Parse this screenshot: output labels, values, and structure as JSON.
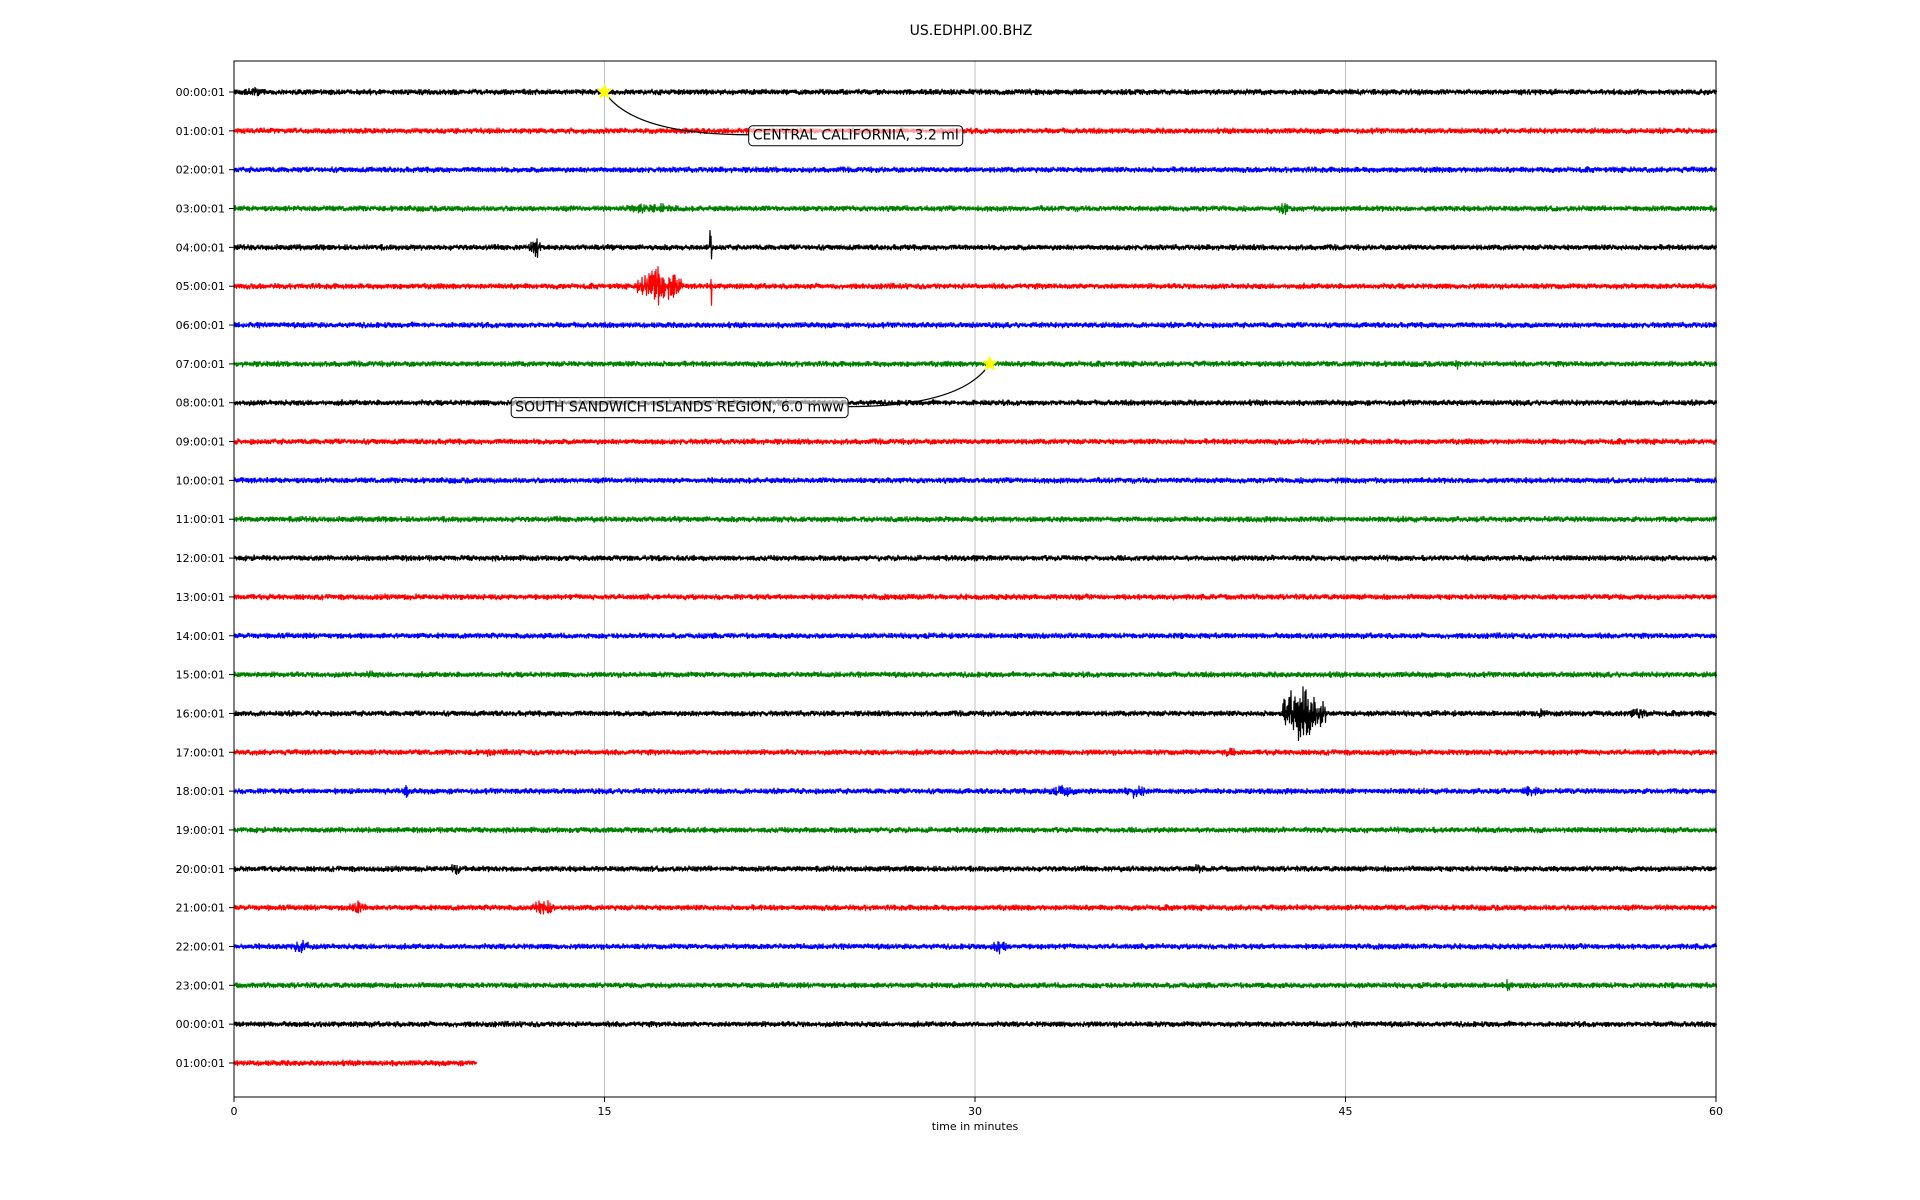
{
  "chart_data": {
    "type": "line",
    "title": "US.EDHPI.00.BHZ",
    "xlabel": "time in minutes",
    "ylabel": "",
    "xlim": [
      0,
      60
    ],
    "x_ticks": [
      "0",
      "15",
      "30",
      "45",
      "60"
    ],
    "x_tick_values": [
      0,
      15,
      30,
      45,
      60
    ],
    "grid": "vertical",
    "colors": [
      "#000000",
      "#ff0000",
      "#0000ff",
      "#008000"
    ],
    "rows": [
      {
        "label": "00:00:01",
        "end_minute": 60
      },
      {
        "label": "01:00:01",
        "end_minute": 60
      },
      {
        "label": "02:00:01",
        "end_minute": 60
      },
      {
        "label": "03:00:01",
        "end_minute": 60
      },
      {
        "label": "04:00:01",
        "end_minute": 60
      },
      {
        "label": "05:00:01",
        "end_minute": 60
      },
      {
        "label": "06:00:01",
        "end_minute": 60
      },
      {
        "label": "07:00:01",
        "end_minute": 60
      },
      {
        "label": "08:00:01",
        "end_minute": 60
      },
      {
        "label": "09:00:01",
        "end_minute": 60
      },
      {
        "label": "10:00:01",
        "end_minute": 60
      },
      {
        "label": "11:00:01",
        "end_minute": 60
      },
      {
        "label": "12:00:01",
        "end_minute": 60
      },
      {
        "label": "13:00:01",
        "end_minute": 60
      },
      {
        "label": "14:00:01",
        "end_minute": 60
      },
      {
        "label": "15:00:01",
        "end_minute": 60
      },
      {
        "label": "16:00:01",
        "end_minute": 60
      },
      {
        "label": "17:00:01",
        "end_minute": 60
      },
      {
        "label": "18:00:01",
        "end_minute": 60
      },
      {
        "label": "19:00:01",
        "end_minute": 60
      },
      {
        "label": "20:00:01",
        "end_minute": 60
      },
      {
        "label": "21:00:01",
        "end_minute": 60
      },
      {
        "label": "22:00:01",
        "end_minute": 60
      },
      {
        "label": "23:00:01",
        "end_minute": 60
      },
      {
        "label": "00:00:01",
        "end_minute": 60
      },
      {
        "label": "01:00:01",
        "end_minute": 9.8
      }
    ],
    "bursts": [
      {
        "row": 0,
        "minute": 0.8,
        "amplitude": 7,
        "width": 0.6
      },
      {
        "row": 0,
        "minute": 29.8,
        "amplitude": 6,
        "width": 0.1
      },
      {
        "row": 3,
        "minute": 16.8,
        "amplitude": 8,
        "width": 1.5
      },
      {
        "row": 3,
        "minute": 42.5,
        "amplitude": 8,
        "width": 0.3
      },
      {
        "row": 4,
        "minute": 12.2,
        "amplitude": 13,
        "width": 0.3
      },
      {
        "row": 4,
        "minute": 19.3,
        "amplitude": 35,
        "width": 0.05
      },
      {
        "row": 5,
        "minute": 17.2,
        "amplitude": 28,
        "width": 0.9
      },
      {
        "row": 5,
        "minute": 19.3,
        "amplitude": 30,
        "width": 0.05
      },
      {
        "row": 7,
        "minute": 49.5,
        "amplitude": 9,
        "width": 0.1
      },
      {
        "row": 15,
        "minute": 5.5,
        "amplitude": 7,
        "width": 0.3
      },
      {
        "row": 16,
        "minute": 43.3,
        "amplitude": 38,
        "width": 0.9
      },
      {
        "row": 16,
        "minute": 52.9,
        "amplitude": 9,
        "width": 0.1
      },
      {
        "row": 16,
        "minute": 56.8,
        "amplitude": 7,
        "width": 0.6
      },
      {
        "row": 17,
        "minute": 10.3,
        "amplitude": 9,
        "width": 0.1
      },
      {
        "row": 17,
        "minute": 40.3,
        "amplitude": 8,
        "width": 0.4
      },
      {
        "row": 18,
        "minute": 7,
        "amplitude": 8,
        "width": 0.2
      },
      {
        "row": 18,
        "minute": 33.5,
        "amplitude": 8,
        "width": 0.8
      },
      {
        "row": 18,
        "minute": 36.5,
        "amplitude": 10,
        "width": 0.5
      },
      {
        "row": 18,
        "minute": 52.5,
        "amplitude": 8,
        "width": 0.6
      },
      {
        "row": 20,
        "minute": 9,
        "amplitude": 7,
        "width": 0.4
      },
      {
        "row": 20,
        "minute": 39,
        "amplitude": 8,
        "width": 0.2
      },
      {
        "row": 21,
        "minute": 5,
        "amplitude": 8,
        "width": 0.5
      },
      {
        "row": 21,
        "minute": 12.5,
        "amplitude": 12,
        "width": 0.5
      },
      {
        "row": 22,
        "minute": 2.7,
        "amplitude": 10,
        "width": 0.4
      },
      {
        "row": 22,
        "minute": 31,
        "amplitude": 10,
        "width": 0.4
      },
      {
        "row": 23,
        "minute": 51.5,
        "amplitude": 9,
        "width": 0.2
      }
    ],
    "events": [
      {
        "label": "CENTRAL CALIFORNIA, 3.2 ml",
        "row": 0,
        "minute": 15.0,
        "marker_color": "#ffff00",
        "label_row": 1.1,
        "label_minute": 21.0,
        "label_anchor": "start"
      },
      {
        "label": "SOUTH SANDWICH ISLANDS REGION, 6.0 mww",
        "row": 7,
        "minute": 30.6,
        "marker_color": "#ffff00",
        "label_row": 8.1,
        "label_minute": 24.7,
        "label_anchor": "end"
      }
    ]
  }
}
